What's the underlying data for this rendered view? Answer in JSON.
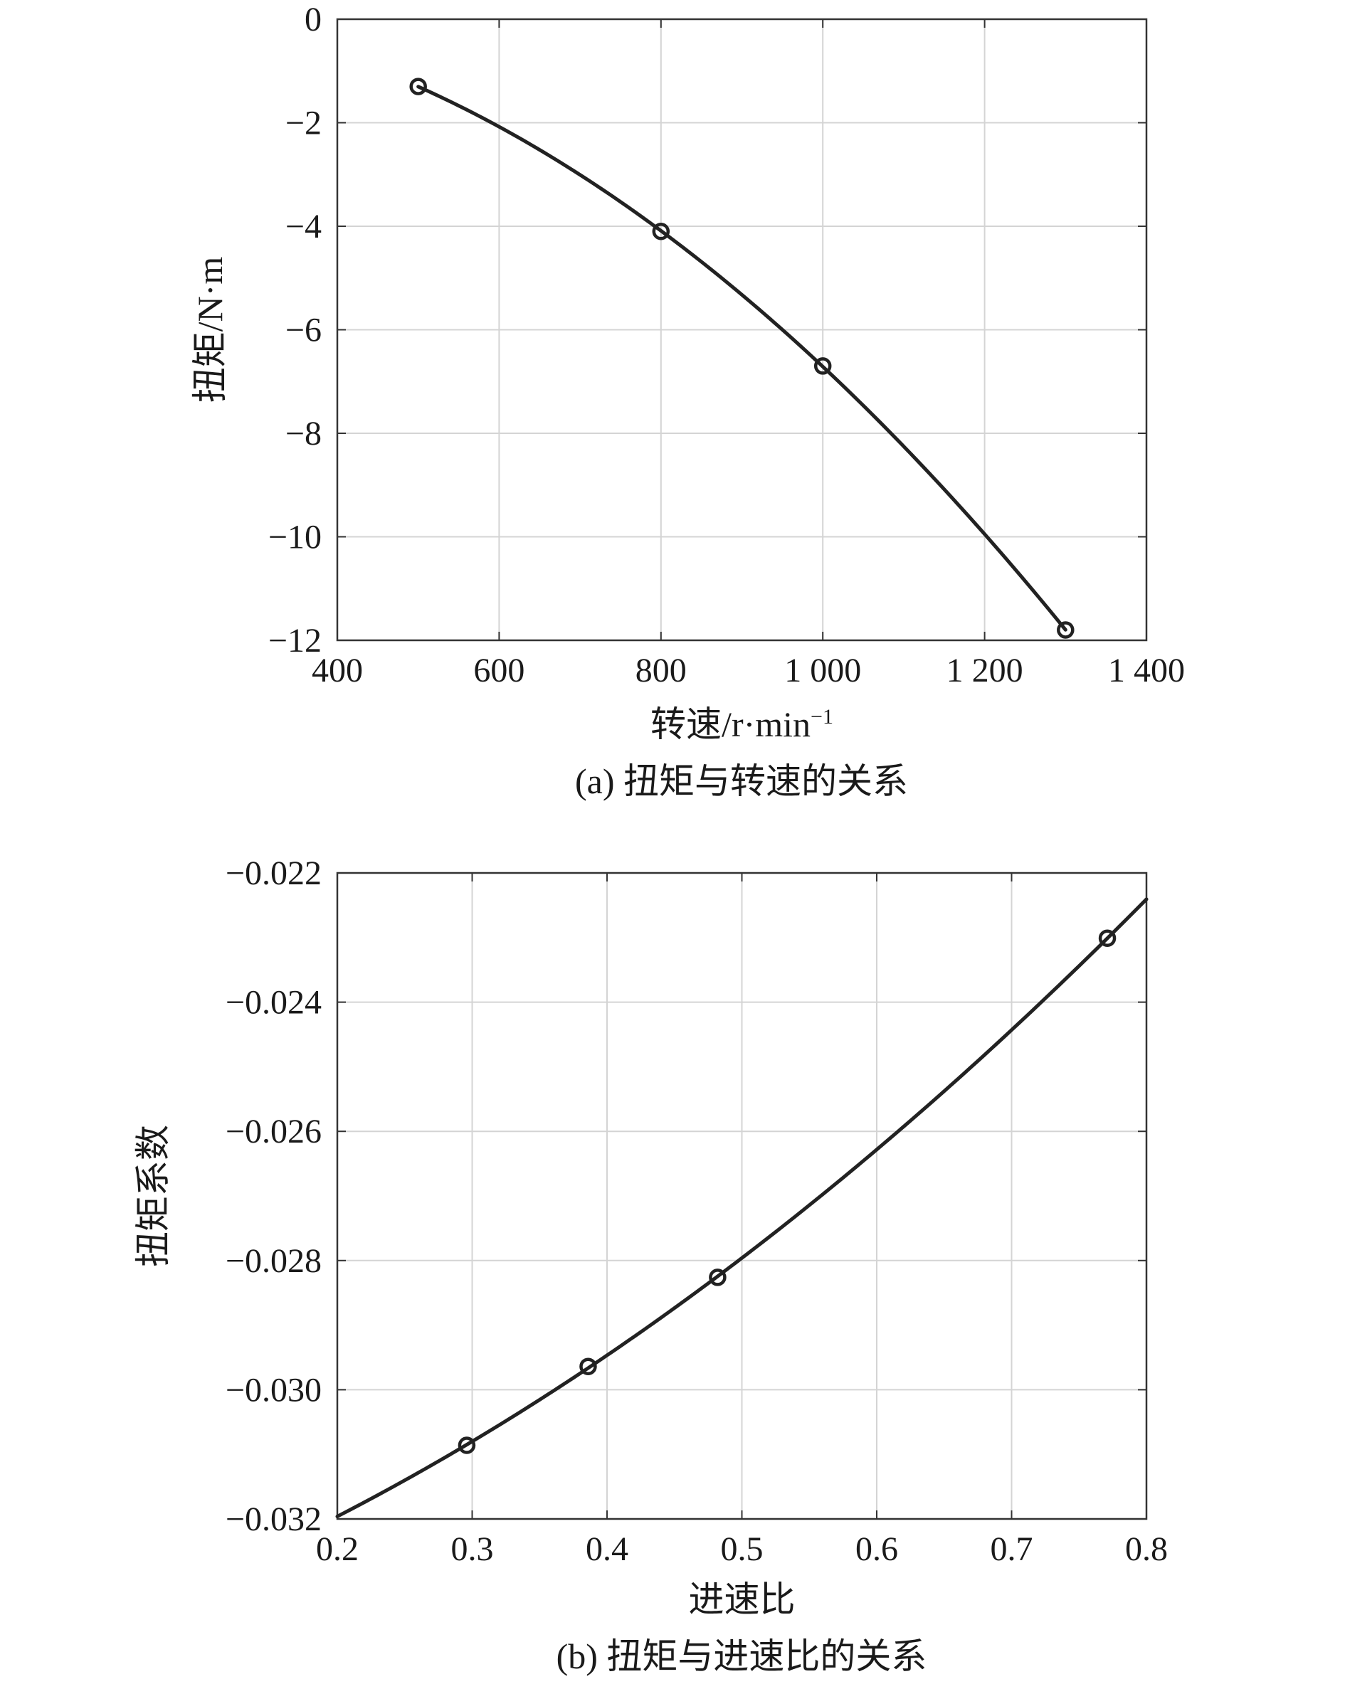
{
  "chart_data": [
    {
      "type": "line",
      "caption": "(a) 扭矩与转速的关系",
      "xlabel": "转速/r·min",
      "xlabel_sup": "−1",
      "ylabel": "扭矩/N·m",
      "xlim": [
        400,
        1400
      ],
      "ylim": [
        -12,
        0
      ],
      "xticks": [
        400,
        600,
        800,
        1000,
        1200,
        1400
      ],
      "xtick_labels": [
        "400",
        "600",
        "800",
        "1 000",
        "1 200",
        "1 400"
      ],
      "yticks": [
        0,
        -2,
        -4,
        -6,
        -8,
        -10,
        -12
      ],
      "ytick_labels": [
        "0",
        "−2",
        "−4",
        "−6",
        "−8",
        "−10",
        "−12"
      ],
      "grid": true,
      "line_color": "#222222",
      "series": [
        {
          "x": [
            500,
            800,
            1000,
            1300
          ],
          "y": [
            -1.3,
            -4.1,
            -6.7,
            -11.8
          ],
          "marker": "circle",
          "fitted_curve": true,
          "curve_x_range": [
            500,
            1300
          ]
        }
      ]
    },
    {
      "type": "line",
      "caption": "(b) 扭矩与进速比的关系",
      "xlabel": "进速比",
      "ylabel": "扭矩系数",
      "xlim": [
        0.2,
        0.8
      ],
      "ylim": [
        -0.032,
        -0.022
      ],
      "xticks": [
        0.2,
        0.3,
        0.4,
        0.5,
        0.6,
        0.7,
        0.8
      ],
      "xtick_labels": [
        "0.2",
        "0.3",
        "0.4",
        "0.5",
        "0.6",
        "0.7",
        "0.8"
      ],
      "yticks": [
        -0.022,
        -0.024,
        -0.026,
        -0.028,
        -0.03,
        -0.032
      ],
      "ytick_labels": [
        "−0.022",
        "−0.024",
        "−0.026",
        "−0.028",
        "−0.030",
        "−0.032"
      ],
      "grid": true,
      "line_color": "#222222",
      "series": [
        {
          "x": [
            0.296,
            0.386,
            0.482,
            0.771
          ],
          "y": [
            -0.03086,
            -0.02964,
            -0.02826,
            -0.02301
          ],
          "marker": "circle",
          "fitted_curve": true,
          "curve_x_range": [
            0.2,
            0.8
          ]
        }
      ]
    }
  ]
}
